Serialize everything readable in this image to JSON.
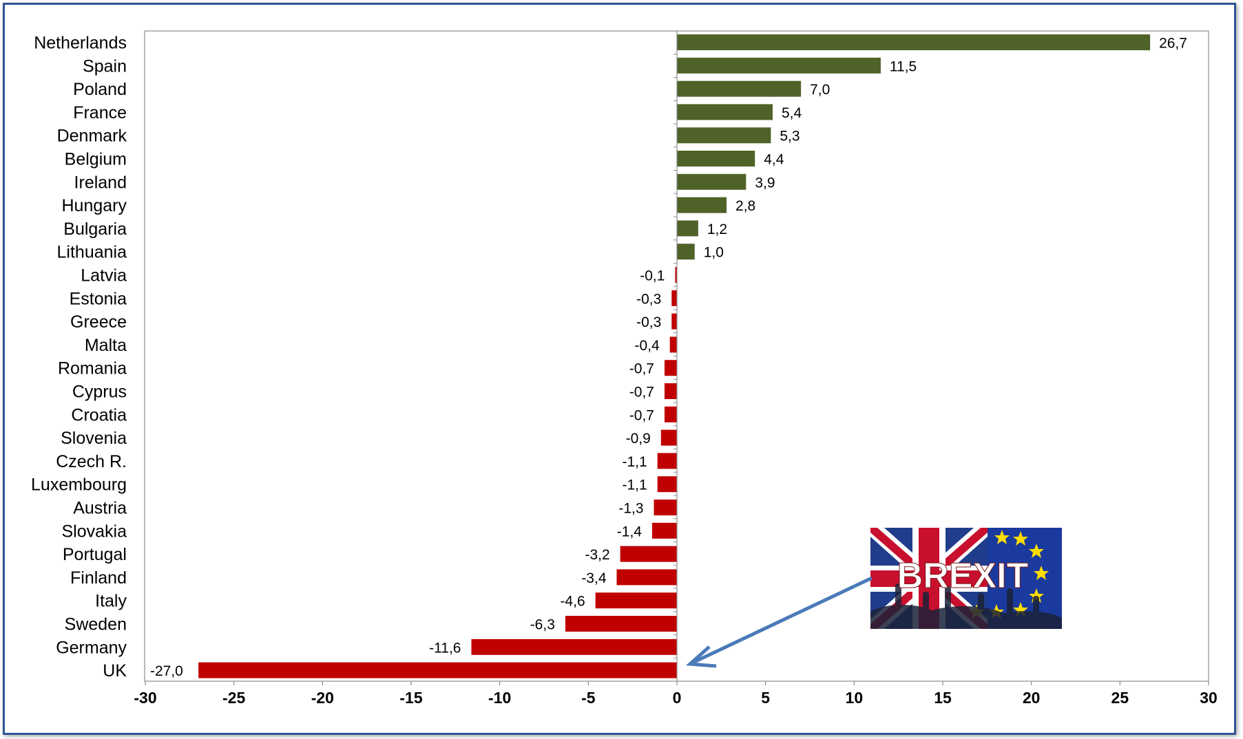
{
  "chart_data": {
    "type": "bar",
    "orientation": "horizontal",
    "categories": [
      "Netherlands",
      "Spain",
      "Poland",
      "France",
      "Denmark",
      "Belgium",
      "Ireland",
      "Hungary",
      "Bulgaria",
      "Lithuania",
      "Latvia",
      "Estonia",
      "Greece",
      "Malta",
      "Romania",
      "Cyprus",
      "Croatia",
      "Slovenia",
      "Czech R.",
      "Luxembourg",
      "Austria",
      "Slovakia",
      "Portugal",
      "Finland",
      "Italy",
      "Sweden",
      "Germany",
      "UK"
    ],
    "values": [
      26.7,
      11.5,
      7.0,
      5.4,
      5.3,
      4.4,
      3.9,
      2.8,
      1.2,
      1.0,
      -0.1,
      -0.3,
      -0.3,
      -0.4,
      -0.7,
      -0.7,
      -0.7,
      -0.9,
      -1.1,
      -1.1,
      -1.3,
      -1.4,
      -3.2,
      -3.4,
      -4.6,
      -6.3,
      -11.6,
      -27.0
    ],
    "value_labels": [
      "26,7",
      "11,5",
      "7,0",
      "5,4",
      "5,3",
      "4,4",
      "3,9",
      "2,8",
      "1,2",
      "1,0",
      "-0,1",
      "-0,3",
      "-0,3",
      "-0,4",
      "-0,7",
      "-0,7",
      "-0,7",
      "-0,9",
      "-1,1",
      "-1,1",
      "-1,3",
      "-1,4",
      "-3,2",
      "-3,4",
      "-4,6",
      "-6,3",
      "-11,6",
      "-27,0"
    ],
    "xlim": [
      -30,
      30
    ],
    "xticks": [
      -30,
      -25,
      -20,
      -15,
      -10,
      -5,
      0,
      5,
      10,
      15,
      20,
      25,
      30
    ],
    "title": "",
    "xlabel": "",
    "ylabel": "",
    "grid": false,
    "legend": "none",
    "colors": {
      "positive": "#4f6228",
      "negative": "#c00000",
      "frame": "#2e5597",
      "arrow": "#4a7ab8"
    },
    "annotation": {
      "text": "BREXIT",
      "points_to": "UK"
    }
  }
}
